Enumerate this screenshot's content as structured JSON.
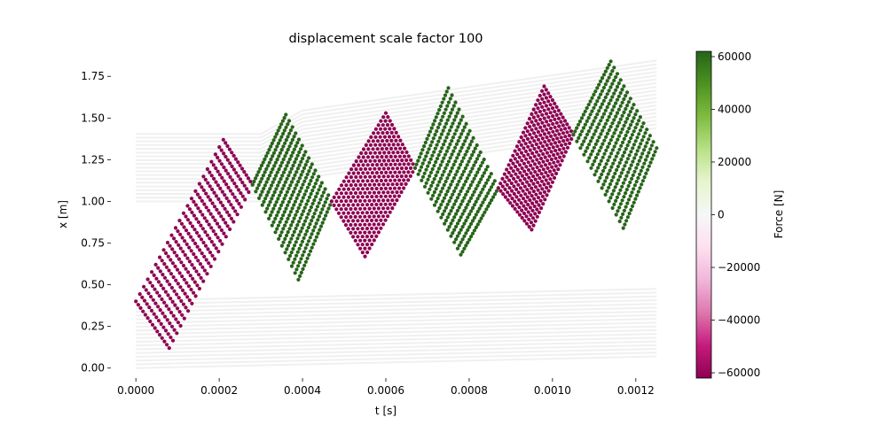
{
  "chart_data": {
    "type": "scatter",
    "title": "displacement scale factor 100",
    "xlabel": "t [s]",
    "ylabel": "x [m]",
    "xlim": [
      -6e-05,
      0.00126
    ],
    "ylim": [
      -0.06,
      1.9
    ],
    "x_ticks": [
      "0.0000",
      "0.0002",
      "0.0004",
      "0.0006",
      "0.0008",
      "0.0010",
      "0.0012"
    ],
    "x_tick_values": [
      0,
      0.0002,
      0.0004,
      0.0006,
      0.0008,
      0.001,
      0.0012
    ],
    "y_ticks": [
      "0.00",
      "0.25",
      "0.50",
      "0.75",
      "1.00",
      "1.25",
      "1.50",
      "1.75"
    ],
    "y_tick_values": [
      0,
      0.25,
      0.5,
      0.75,
      1.0,
      1.25,
      1.5,
      1.75
    ],
    "colorbar": {
      "label": "Force [N]",
      "range": [
        -62000,
        62000
      ],
      "ticks": [
        "60000",
        "40000",
        "20000",
        "0",
        "−20000",
        "−40000",
        "−60000"
      ],
      "tick_values": [
        60000,
        40000,
        20000,
        0,
        -20000,
        -40000,
        -60000
      ],
      "colormap": "PiYG",
      "low_color": "#8e0152",
      "high_color": "#276419"
    },
    "background_lines": {
      "color": "#f0f0f0",
      "count": 19,
      "spacing_m": 0.0225,
      "t_end": 0.00125
    },
    "series": [
      {
        "force": -60000,
        "corners": [
          [
            0.0,
            0.4
          ],
          [
            0.00021,
            1.37
          ],
          [
            0.00028,
            1.1
          ],
          [
            8e-05,
            0.12
          ]
        ]
      },
      {
        "force": 60000,
        "corners": [
          [
            0.00028,
            1.1
          ],
          [
            0.00036,
            1.52
          ],
          [
            0.00047,
            1.0
          ],
          [
            0.00039,
            0.53
          ]
        ]
      },
      {
        "force": -60000,
        "corners": [
          [
            0.00047,
            1.0
          ],
          [
            0.0006,
            1.53
          ],
          [
            0.00067,
            1.2
          ],
          [
            0.00055,
            0.67
          ]
        ]
      },
      {
        "force": 60000,
        "corners": [
          [
            0.00067,
            1.2
          ],
          [
            0.00075,
            1.68
          ],
          [
            0.00087,
            1.08
          ],
          [
            0.00078,
            0.68
          ]
        ]
      },
      {
        "force": -60000,
        "corners": [
          [
            0.00087,
            1.08
          ],
          [
            0.00098,
            1.69
          ],
          [
            0.00105,
            1.4
          ],
          [
            0.00095,
            0.83
          ]
        ]
      },
      {
        "force": 60000,
        "corners": [
          [
            0.00105,
            1.4
          ],
          [
            0.00114,
            1.84
          ],
          [
            0.00125,
            1.32
          ],
          [
            0.00117,
            0.84
          ]
        ]
      }
    ]
  }
}
